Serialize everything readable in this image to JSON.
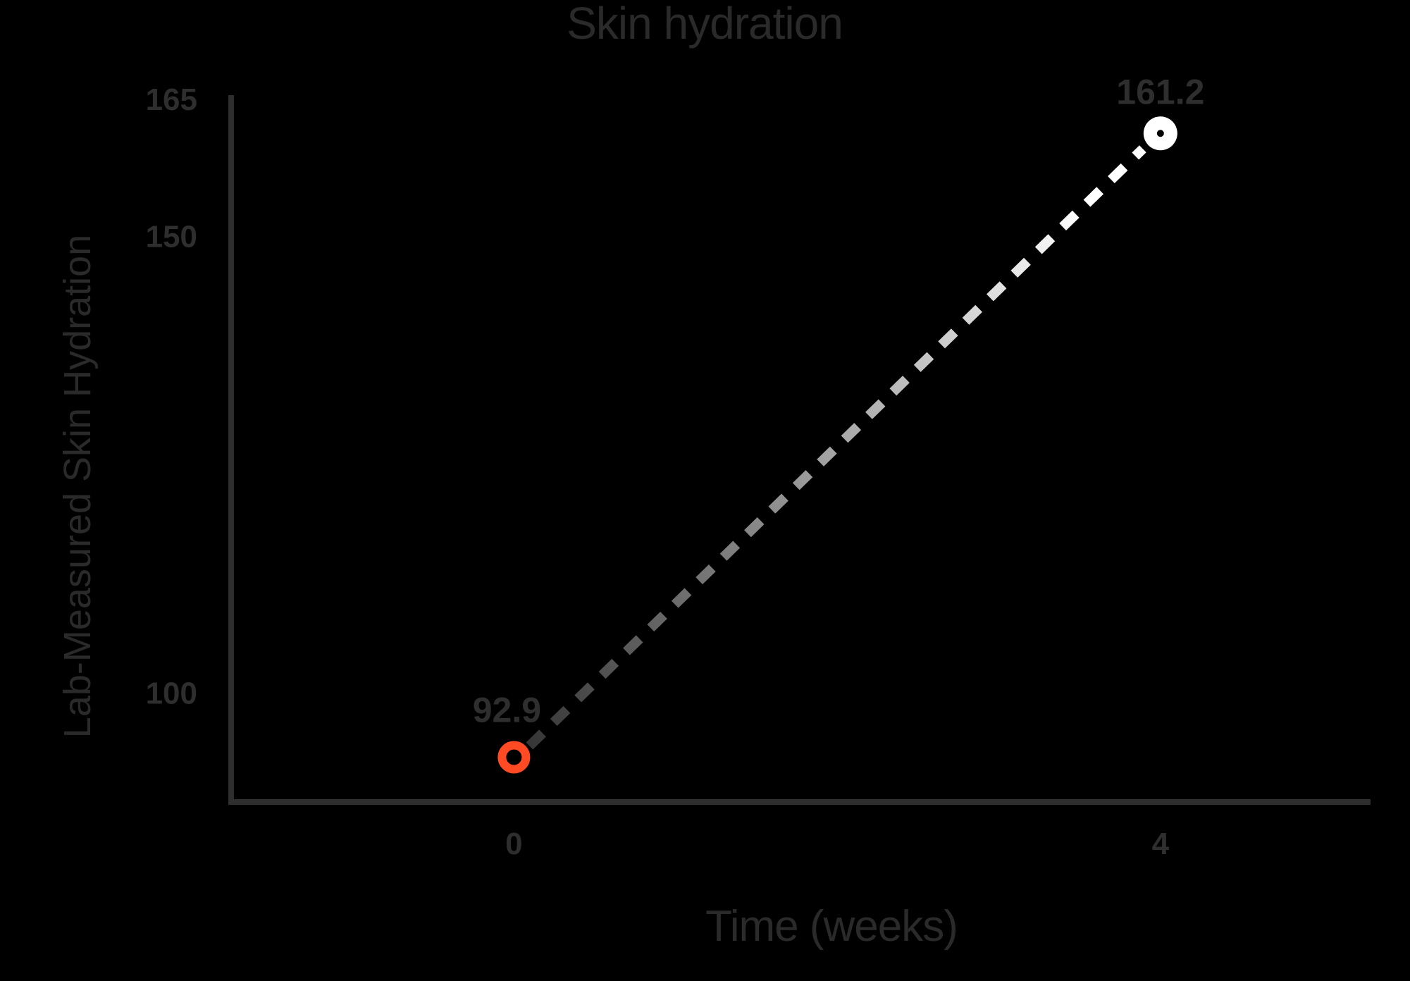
{
  "chart_data": {
    "type": "line",
    "title": "Skin hydration",
    "xlabel": "Time (weeks)",
    "ylabel": "Lab-Measured Skin Hydration",
    "x": [
      0,
      4
    ],
    "categories": [
      "0",
      "4"
    ],
    "yticks": [
      100,
      150,
      165
    ],
    "ylim": [
      88,
      165
    ],
    "xlim": [
      -1.75,
      5.3
    ],
    "series": [
      {
        "values": [
          92.9,
          161.2
        ],
        "point_labels": [
          "92.9",
          "161.2"
        ],
        "point_colors": [
          "#ff4a24",
          "#ffffff"
        ],
        "line_gradient": [
          "#2b2b2b",
          "#ffffff"
        ],
        "line_style": "dashed"
      }
    ],
    "grid": false,
    "legend": "none"
  },
  "colors": {
    "background": "#000000",
    "axis": "#2e2e2e",
    "text": "#2a2a2a",
    "start_marker": "#ff4a24",
    "end_marker": "#ffffff"
  }
}
